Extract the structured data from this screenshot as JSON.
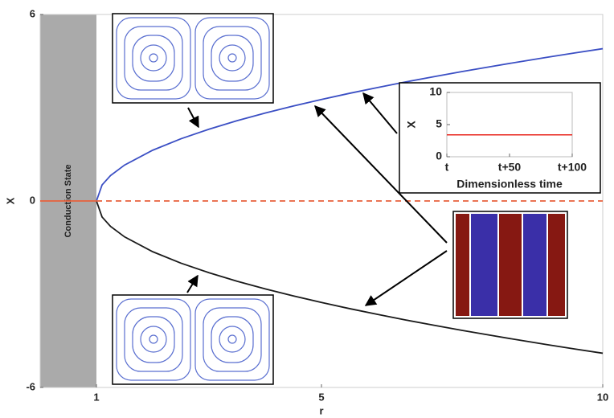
{
  "chart_data": [
    {
      "type": "line",
      "xlabel": "r",
      "ylabel": "X",
      "xlim": [
        0,
        10
      ],
      "ylim": [
        -6,
        6
      ],
      "xticks": [
        1,
        5,
        10
      ],
      "yticks": [
        -6,
        0,
        6
      ],
      "shade": {
        "xlim": [
          0,
          1
        ],
        "label": "Conduction State",
        "color": "#aaaaaa"
      },
      "series": [
        {
          "color": "#3b4fc4",
          "x": [
            1,
            1.1,
            1.25,
            1.5,
            2,
            2.5,
            3,
            3.5,
            4,
            4.5,
            5,
            5.5,
            6,
            6.5,
            7,
            7.5,
            8,
            8.5,
            9,
            9.5,
            10
          ],
          "values": [
            0,
            0.516,
            0.816,
            1.155,
            1.633,
            2,
            2.309,
            2.582,
            2.828,
            3.055,
            3.266,
            3.464,
            3.651,
            3.83,
            4,
            4.163,
            4.32,
            4.472,
            4.619,
            4.761,
            4.899
          ]
        },
        {
          "color": "#1a1a1a",
          "x": [
            1,
            1.1,
            1.25,
            1.5,
            2,
            2.5,
            3,
            3.5,
            4,
            4.5,
            5,
            5.5,
            6,
            6.5,
            7,
            7.5,
            8,
            8.5,
            9,
            9.5,
            10
          ],
          "values": [
            0,
            -0.516,
            -0.816,
            -1.155,
            -1.633,
            -2,
            -2.309,
            -2.582,
            -2.828,
            -3.055,
            -3.266,
            -3.464,
            -3.651,
            -3.83,
            -4,
            -4.163,
            -4.32,
            -4.472,
            -4.619,
            -4.761,
            -4.899
          ]
        },
        {
          "color": "#e8603c",
          "x": [
            0,
            1
          ],
          "values": [
            0,
            0
          ],
          "dashed": false
        },
        {
          "color": "#e8603c",
          "x": [
            1,
            10
          ],
          "values": [
            0,
            0
          ],
          "dashed": true
        }
      ]
    },
    {
      "type": "line",
      "xlabel": "Dimensionless time",
      "ylabel": "X",
      "xlim": [
        0,
        100
      ],
      "ylim": [
        0,
        10
      ],
      "xticks": [
        {
          "value": 0,
          "label": "t"
        },
        {
          "value": 50,
          "label": "t+50"
        },
        {
          "value": 100,
          "label": "t+100"
        }
      ],
      "yticks": [
        0,
        5,
        10
      ],
      "series": [
        {
          "color": "#e8261e",
          "x": [
            0,
            100
          ],
          "values": [
            3.4,
            3.4
          ]
        }
      ]
    }
  ]
}
